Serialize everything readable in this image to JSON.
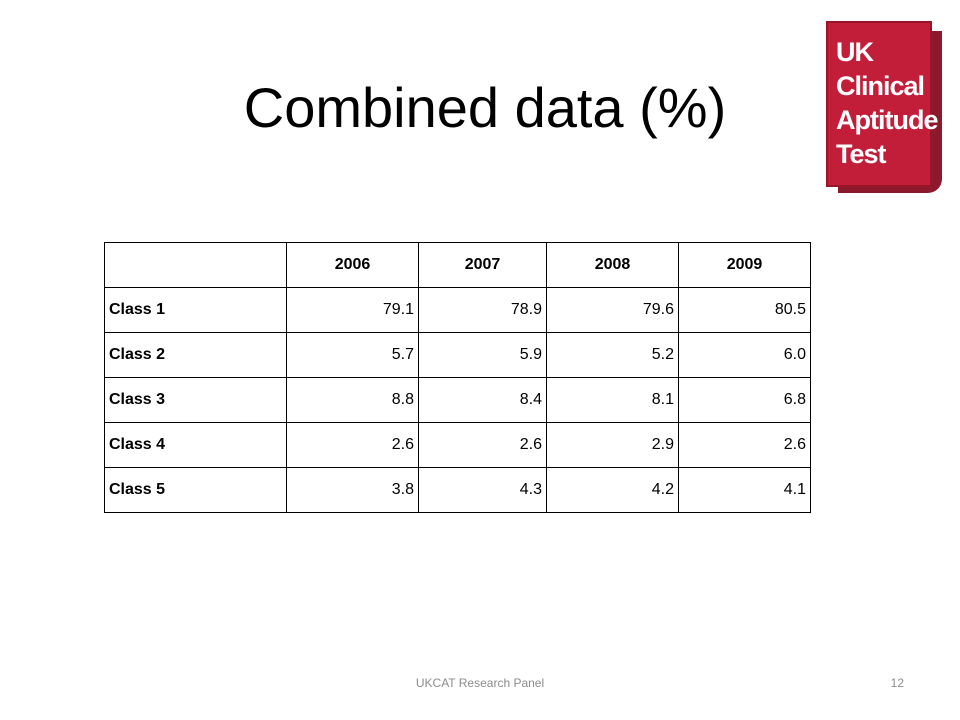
{
  "slide": {
    "title": "Combined data (%)",
    "footer": "UKCAT Research Panel",
    "page_number": "12"
  },
  "logo": {
    "lines": [
      "UK",
      "Clinical",
      "Aptitude",
      "Test"
    ],
    "color": "#c21e3a"
  },
  "table": {
    "headers": [
      "",
      "2006",
      "2007",
      "2008",
      "2009"
    ],
    "rows": [
      {
        "label": "Class 1",
        "values": [
          "79.1",
          "78.9",
          "79.6",
          "80.5"
        ]
      },
      {
        "label": "Class 2",
        "values": [
          "5.7",
          "5.9",
          "5.2",
          "6.0"
        ]
      },
      {
        "label": "Class 3",
        "values": [
          "8.8",
          "8.4",
          "8.1",
          "6.8"
        ]
      },
      {
        "label": "Class 4",
        "values": [
          "2.6",
          "2.6",
          "2.9",
          "2.6"
        ]
      },
      {
        "label": "Class 5",
        "values": [
          "3.8",
          "4.3",
          "4.2",
          "4.1"
        ]
      }
    ]
  }
}
